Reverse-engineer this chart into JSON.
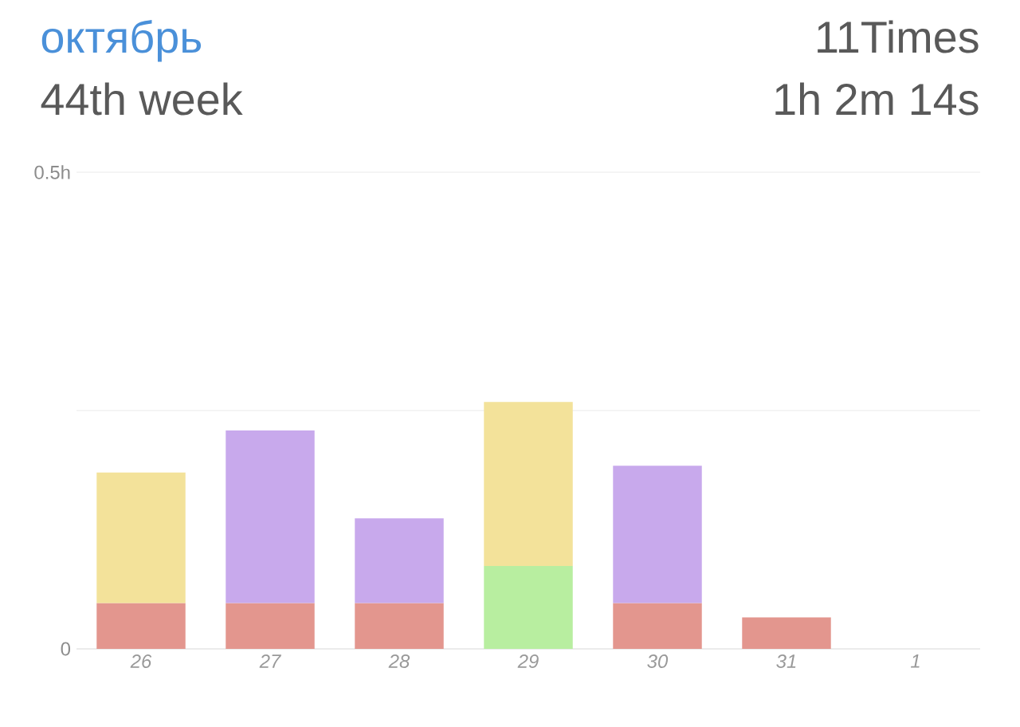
{
  "chart_data": {
    "type": "bar",
    "stacked": true,
    "title": "октябрь",
    "subtitle": "44th week",
    "annotations": [
      "11Times",
      "1h 2m 14s"
    ],
    "categories": [
      "26",
      "27",
      "28",
      "29",
      "30",
      "31",
      "1"
    ],
    "series": [
      {
        "color": "#e3968e",
        "values": [
          0.048,
          0.048,
          0.048,
          null,
          0.048,
          0.033,
          null
        ]
      },
      {
        "color": "#b8eea0",
        "values": [
          null,
          null,
          null,
          0.087,
          null,
          null,
          null
        ]
      },
      {
        "color": "#f3e29a",
        "values": [
          0.137,
          null,
          null,
          0.172,
          null,
          null,
          null
        ]
      },
      {
        "color": "#c8a9ec",
        "values": [
          null,
          0.181,
          0.089,
          null,
          0.144,
          null,
          null
        ]
      }
    ],
    "ylim": [
      0,
      0.5
    ],
    "yticks": [
      0,
      {
        "value": 0.25,
        "label": null
      },
      {
        "value": 0.5,
        "label": "0.5h"
      }
    ],
    "grid": "y"
  }
}
